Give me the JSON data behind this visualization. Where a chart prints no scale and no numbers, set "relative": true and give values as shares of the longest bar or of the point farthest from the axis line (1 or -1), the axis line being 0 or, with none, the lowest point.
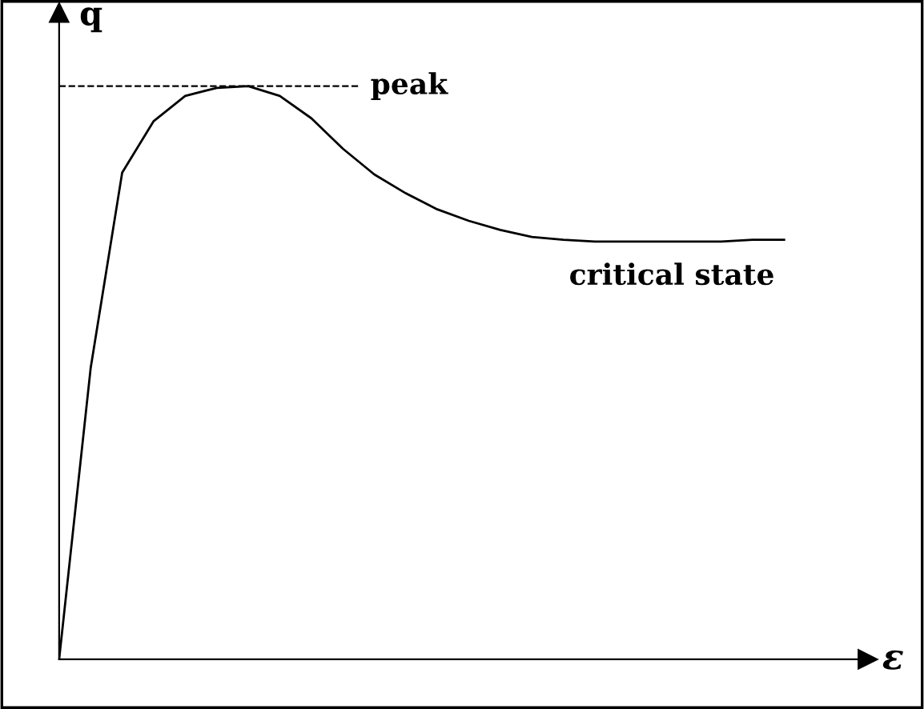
{
  "chart_data": {
    "type": "line",
    "relative": true,
    "ylabel": "q",
    "xlabel": "ε",
    "categories": [
      null,
      null,
      null,
      null,
      null,
      null,
      null,
      null,
      null,
      null,
      null,
      null,
      null,
      null,
      null,
      null,
      null,
      null,
      null,
      null,
      null,
      null,
      null,
      null
    ],
    "series": [
      {
        "color": "#000000",
        "values": [
          0,
          0.508,
          0.849,
          0.939,
          0.983,
          0.997,
          1.0,
          0.983,
          0.944,
          0.891,
          0.846,
          0.813,
          0.785,
          0.765,
          0.749,
          0.737,
          0.732,
          0.729,
          0.729,
          0.729,
          0.729,
          0.729,
          0.732,
          0.732
        ]
      }
    ],
    "ref_lines": [
      {
        "axis": "y",
        "value": 1.0,
        "label": "peak",
        "color": "#000000",
        "line_style": "dashed"
      }
    ],
    "annotations": [
      {
        "text": "critical state",
        "y": 0.732
      }
    ],
    "legend": false,
    "marker": "none",
    "line_style": "solid"
  }
}
